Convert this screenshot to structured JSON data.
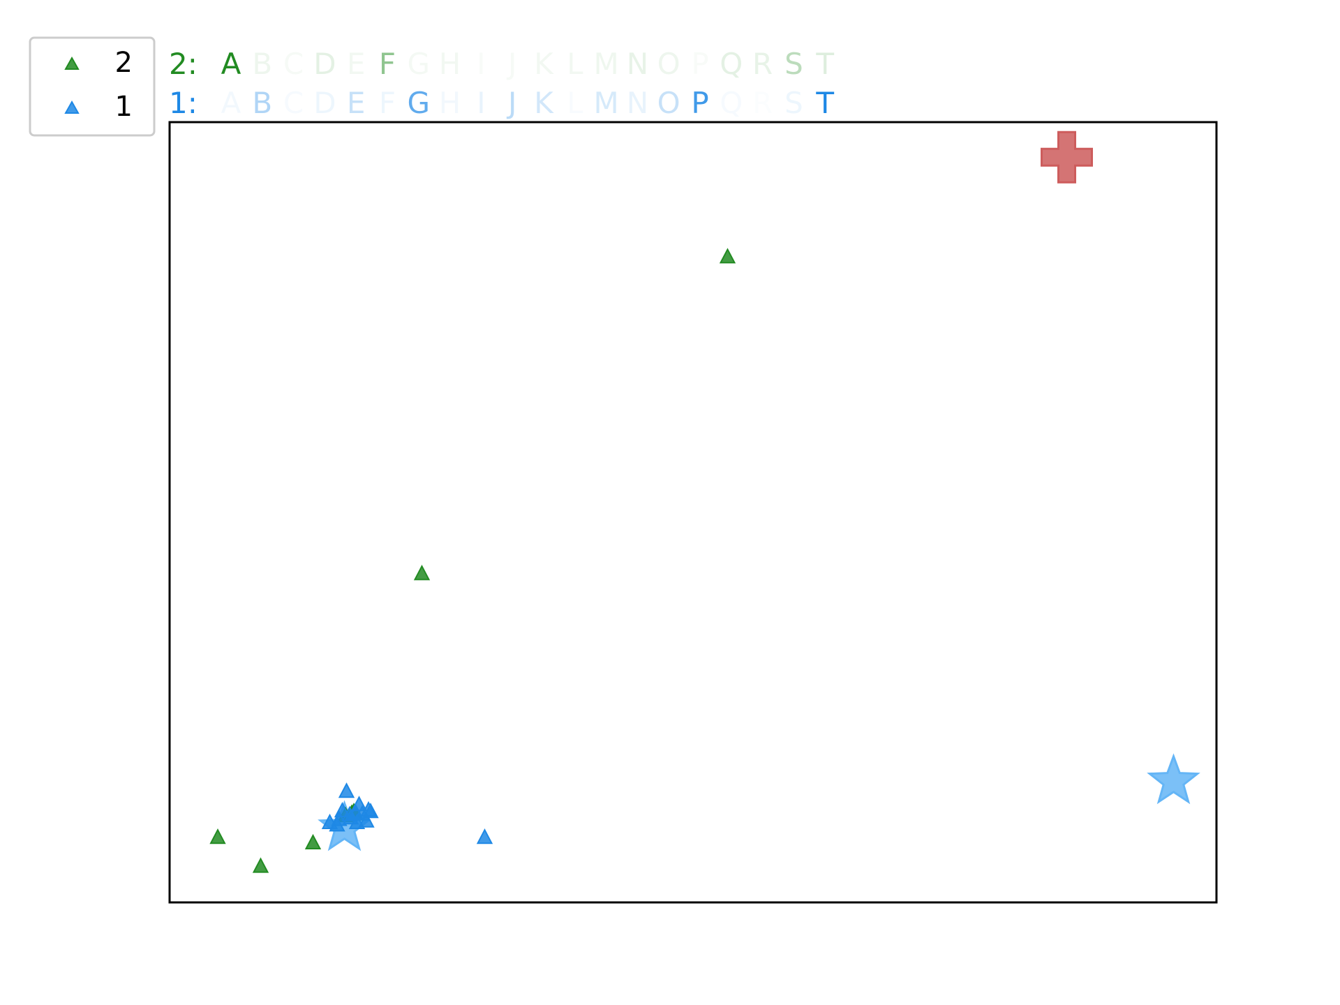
{
  "legend": {
    "entries": [
      {
        "label": "2",
        "color": "#228B22",
        "marker": "triangle"
      },
      {
        "label": "1",
        "color": "#1E88E5",
        "marker": "triangle"
      }
    ]
  },
  "letter_rows": [
    {
      "prefix": "2:",
      "color": "#228B22",
      "letters": [
        "A",
        "B",
        "C",
        "D",
        "E",
        "F",
        "G",
        "H",
        "I",
        "J",
        "K",
        "L",
        "M",
        "N",
        "O",
        "P",
        "Q",
        "R",
        "S",
        "T"
      ],
      "opacity": [
        1.0,
        0.08,
        0.04,
        0.12,
        0.06,
        0.5,
        0.05,
        0.06,
        0.03,
        0.04,
        0.06,
        0.06,
        0.07,
        0.1,
        0.08,
        0.03,
        0.12,
        0.1,
        0.3,
        0.15
      ]
    },
    {
      "prefix": "1:",
      "color": "#1E88E5",
      "letters": [
        "A",
        "B",
        "C",
        "D",
        "E",
        "F",
        "G",
        "H",
        "I",
        "J",
        "K",
        "L",
        "M",
        "N",
        "O",
        "P",
        "Q",
        "R",
        "S",
        "T"
      ],
      "opacity": [
        0.06,
        0.35,
        0.04,
        0.08,
        0.25,
        0.08,
        0.7,
        0.06,
        0.1,
        0.3,
        0.2,
        0.03,
        0.18,
        0.1,
        0.25,
        0.85,
        0.04,
        0.02,
        0.08,
        1.0
      ]
    }
  ],
  "chart_data": {
    "type": "scatter",
    "title": "",
    "xlabel": "",
    "ylabel": "",
    "xlim": [
      0,
      100
    ],
    "ylim": [
      0,
      100
    ],
    "grid": false,
    "legend_position": "top-left, outside plot",
    "series": [
      {
        "name": "2",
        "color": "#228B22",
        "marker": "triangle",
        "points": [
          [
            4.6,
            8.3
          ],
          [
            8.7,
            4.6
          ],
          [
            13.7,
            7.6
          ],
          [
            17.8,
            11.3
          ],
          [
            17.4,
            11.4
          ],
          [
            16.8,
            11.1
          ],
          [
            17.6,
            11.6
          ],
          [
            24.1,
            42.1
          ],
          [
            53.3,
            82.7
          ]
        ]
      },
      {
        "name": "1",
        "color": "#1E88E5",
        "marker": "triangle",
        "points": [
          [
            17.8,
            11.4
          ],
          [
            17.2,
            11.2
          ],
          [
            16.5,
            11.7
          ],
          [
            15.3,
            10.2
          ],
          [
            16.0,
            9.9
          ],
          [
            16.9,
            14.2
          ],
          [
            18.4,
            11.3
          ],
          [
            19.0,
            11.8
          ],
          [
            18.8,
            10.4
          ],
          [
            17.9,
            10.2
          ],
          [
            17.3,
            10.8
          ],
          [
            18.1,
            12.5
          ],
          [
            16.2,
            10.6
          ],
          [
            19.2,
            11.6
          ],
          [
            30.1,
            8.3
          ]
        ]
      }
    ],
    "special_markers": [
      {
        "shape": "star",
        "color": "#64B5F6",
        "x": 16.7,
        "y": 9.5
      },
      {
        "shape": "star",
        "color": "#64B5F6",
        "x": 95.9,
        "y": 15.5
      },
      {
        "shape": "cross",
        "color": "#CD5C5C",
        "x": 85.7,
        "y": 95.5
      }
    ]
  }
}
